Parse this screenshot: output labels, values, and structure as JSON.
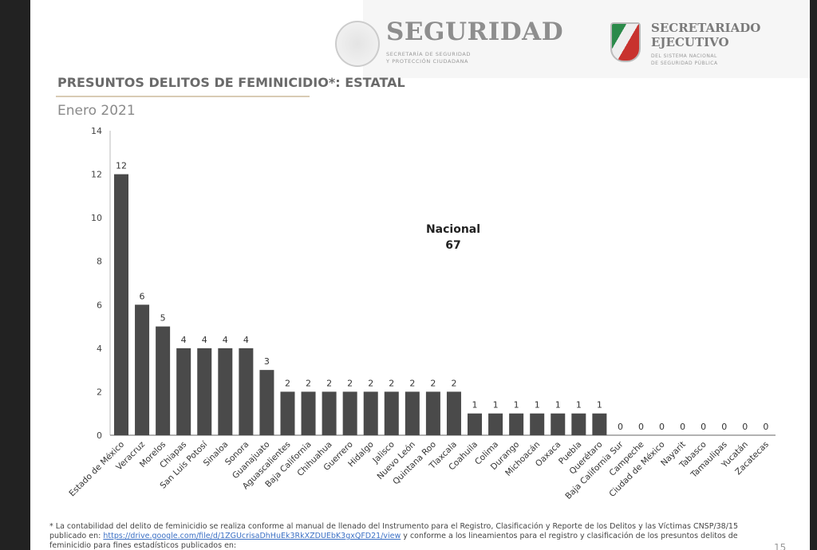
{
  "header": {
    "logo_seguridad": "SEGURIDAD",
    "logo_seguridad_sub": [
      "SECRETARÍA DE SEGURIDAD",
      "Y PROTECCIÓN CIUDADANA"
    ],
    "logo_secretariado": [
      "SECRETARIADO",
      "EJECUTIVO"
    ],
    "logo_secretariado_sub": [
      "DEL SISTEMA NACIONAL",
      "DE SEGURIDAD PÚBLICA"
    ]
  },
  "slide": {
    "title": "PRESUNTOS DELITOS DE FEMINICIDIO*: ESTATAL",
    "subtitle": "Enero 2021",
    "page_number": "15"
  },
  "chart_data": {
    "type": "bar",
    "annotation": {
      "label": "Nacional",
      "value": "67"
    },
    "ylim": [
      0,
      14
    ],
    "yticks": [
      0,
      2,
      4,
      6,
      8,
      10,
      12,
      14
    ],
    "grid": false,
    "bar_color": "#4a4a4a",
    "categories": [
      "Estado de México",
      "Veracruz",
      "Morelos",
      "Chiapas",
      "San Luis Potosí",
      "Sinaloa",
      "Sonora",
      "Guanajuato",
      "Aguascalientes",
      "Baja California",
      "Chihuahua",
      "Guerrero",
      "Hidalgo",
      "Jalisco",
      "Nuevo León",
      "Quintana Roo",
      "Tlaxcala",
      "Coahuila",
      "Colima",
      "Durango",
      "Michoacán",
      "Oaxaca",
      "Puebla",
      "Querétaro",
      "Baja California Sur",
      "Campeche",
      "Ciudad de México",
      "Nayarit",
      "Tabasco",
      "Tamaulipas",
      "Yucatán",
      "Zacatecas"
    ],
    "values": [
      12,
      6,
      5,
      4,
      4,
      4,
      4,
      3,
      2,
      2,
      2,
      2,
      2,
      2,
      2,
      2,
      2,
      1,
      1,
      1,
      1,
      1,
      1,
      1,
      0,
      0,
      0,
      0,
      0,
      0,
      0,
      0
    ]
  },
  "footnote": {
    "text_before": "* La contabilidad del delito de feminicidio se realiza conforme al manual de llenado del Instrumento para el Registro, Clasificación y Reporte de los Delitos y las Víctimas CNSP/38/15 publicado en: ",
    "link": "https://drive.google.com/file/d/1ZGUcrisaDhHuEk3RkXZDUEbK3gxQFD21/view",
    "text_after": " y conforme a los lineamientos para el registro y clasificación de los presuntos delitos de feminicidio para fines estadísticos publicados en:"
  }
}
